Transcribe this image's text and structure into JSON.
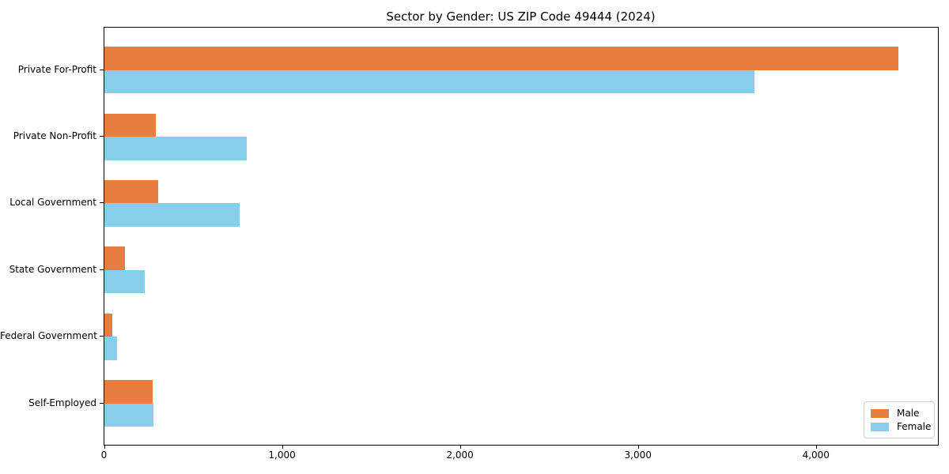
{
  "chart_data": {
    "type": "bar",
    "orientation": "horizontal",
    "title": "Sector by Gender: US ZIP Code 49444 (2024)",
    "categories": [
      "Private For-Profit",
      "Private Non-Profit",
      "Local Government",
      "State Government",
      "Federal Government",
      "Self-Employed"
    ],
    "series": [
      {
        "name": "Male",
        "color": "#e87e3e",
        "values": [
          4460,
          290,
          300,
          115,
          45,
          270
        ]
      },
      {
        "name": "Female",
        "color": "#87ceeb",
        "values": [
          3650,
          800,
          760,
          225,
          70,
          275
        ]
      }
    ],
    "xlabel": "",
    "ylabel": "",
    "xlim": [
      0,
      4683
    ],
    "x_ticks": [
      {
        "value": 0,
        "label": "0"
      },
      {
        "value": 1000,
        "label": "1,000"
      },
      {
        "value": 2000,
        "label": "2,000"
      },
      {
        "value": 3000,
        "label": "3,000"
      },
      {
        "value": 4000,
        "label": "4,000"
      }
    ],
    "grid": false,
    "legend": {
      "position": "lower-right",
      "entries": [
        "Male",
        "Female"
      ]
    }
  }
}
